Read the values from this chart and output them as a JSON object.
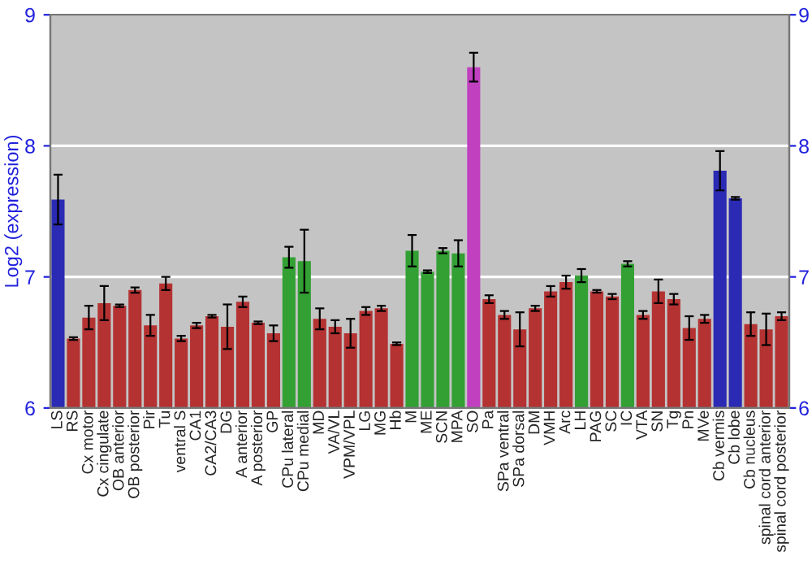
{
  "chart_data": {
    "type": "bar",
    "ylabel": "Log2 (expression)",
    "categories": [
      "LS",
      "RS",
      "Cx motor",
      "Cx cingulate",
      "OB anterior",
      "OB posterior",
      "Pir",
      "Tu",
      "ventral S",
      "CA1",
      "CA2/CA3",
      "DG",
      "A anterior",
      "A posterior",
      "GP",
      "CPu lateral",
      "CPu medial",
      "MD",
      "VA/VL",
      "VPM/VPL",
      "LG",
      "MG",
      "Hb",
      "M",
      "ME",
      "SCN",
      "MPA",
      "SO",
      "Pa",
      "SPa ventral",
      "SPa dorsal",
      "DM",
      "VMH",
      "Arc",
      "LH",
      "PAG",
      "SC",
      "IC",
      "VTA",
      "SN",
      "Tg",
      "Pn",
      "MVe",
      "Cb vermis",
      "Cb lobe",
      "Cb nucleus",
      "spinal cord anterior",
      "spinal cord posterior"
    ],
    "values": [
      7.59,
      6.53,
      6.69,
      6.8,
      6.78,
      6.9,
      6.63,
      6.95,
      6.53,
      6.63,
      6.7,
      6.62,
      6.81,
      6.65,
      6.57,
      7.15,
      7.12,
      6.68,
      6.62,
      6.57,
      6.74,
      6.76,
      6.49,
      7.2,
      7.04,
      7.2,
      7.18,
      8.6,
      6.83,
      6.71,
      6.6,
      6.76,
      6.89,
      6.96,
      7.01,
      6.89,
      6.85,
      7.1,
      6.71,
      6.89,
      6.83,
      6.61,
      6.68,
      7.81,
      7.6,
      6.64,
      6.6,
      6.7
    ],
    "errors": [
      0.19,
      0.01,
      0.09,
      0.13,
      0.01,
      0.02,
      0.08,
      0.05,
      0.02,
      0.02,
      0.01,
      0.17,
      0.04,
      0.01,
      0.06,
      0.08,
      0.24,
      0.08,
      0.05,
      0.11,
      0.03,
      0.02,
      0.01,
      0.12,
      0.01,
      0.02,
      0.1,
      0.11,
      0.03,
      0.03,
      0.13,
      0.02,
      0.04,
      0.05,
      0.05,
      0.01,
      0.02,
      0.02,
      0.03,
      0.09,
      0.04,
      0.09,
      0.03,
      0.15,
      0.01,
      0.09,
      0.12,
      0.03
    ],
    "colors": [
      "#2a2ab4",
      "#b43232",
      "#b43232",
      "#b43232",
      "#b43232",
      "#b43232",
      "#b43232",
      "#b43232",
      "#b43232",
      "#b43232",
      "#b43232",
      "#b43232",
      "#b43232",
      "#b43232",
      "#b43232",
      "#33a033",
      "#33a033",
      "#b43232",
      "#b43232",
      "#b43232",
      "#b43232",
      "#b43232",
      "#b43232",
      "#33a033",
      "#33a033",
      "#33a033",
      "#33a033",
      "#c040c0",
      "#b43232",
      "#b43232",
      "#b43232",
      "#b43232",
      "#b43232",
      "#b43232",
      "#33a033",
      "#b43232",
      "#b43232",
      "#33a033",
      "#b43232",
      "#b43232",
      "#b43232",
      "#b43232",
      "#b43232",
      "#2a2ab4",
      "#2a2ab4",
      "#b43232",
      "#b43232",
      "#b43232"
    ],
    "ylim": [
      6,
      9
    ],
    "yticks": [
      6,
      7,
      8,
      9
    ],
    "y2lim": [
      6,
      9
    ],
    "y2ticks": [
      6,
      7,
      8,
      9
    ],
    "grid": "y",
    "legend": false
  }
}
